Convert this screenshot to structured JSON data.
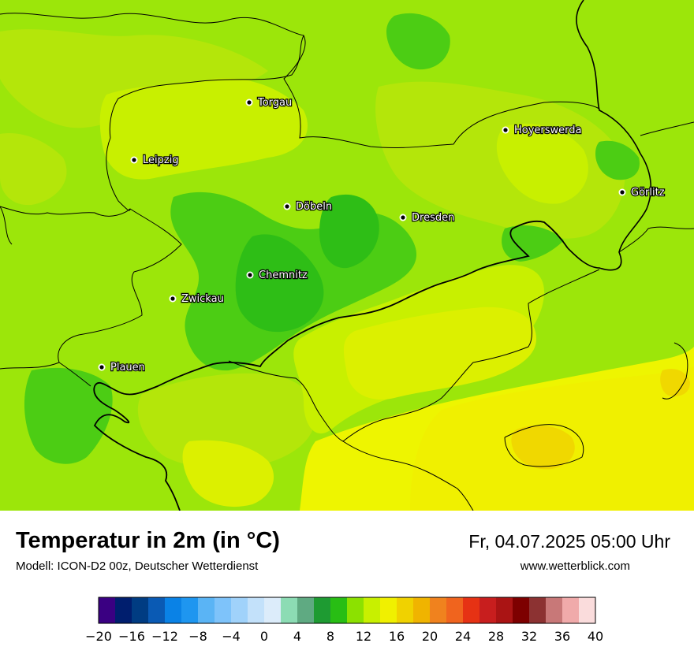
{
  "title": "Temperatur in 2m (in °C)",
  "subtitle": "Modell: ICON-D2 00z, Deutscher Wetterdienst",
  "datetime": "Fr, 04.07.2025 05:00 Uhr",
  "website": "www.wetterblick.com",
  "map_colors": {
    "temp_11": "#9ce60a",
    "temp_12": "#b4e60a",
    "temp_13": "#c8f000",
    "temp_14": "#dcf000",
    "temp_15": "#eef500",
    "temp_16": "#f0f000",
    "temp_10": "#4ccd14",
    "temp_9": "#2ebe16",
    "temp_17": "#f0d800"
  },
  "cities": [
    {
      "name": "Torgau"
    },
    {
      "name": "Leipzig"
    },
    {
      "name": "Hoyerswerda"
    },
    {
      "name": "Görlitz"
    },
    {
      "name": "Döbeln"
    },
    {
      "name": "Dresden"
    },
    {
      "name": "Chemnitz"
    },
    {
      "name": "Zwickau"
    },
    {
      "name": "Plauen"
    }
  ],
  "legend": {
    "colors": [
      "#3a0082",
      "#001e6e",
      "#003c82",
      "#0a5ab4",
      "#0a82e6",
      "#1e96f0",
      "#5ab4f5",
      "#7ec3fa",
      "#a0d2fa",
      "#c3e1fa",
      "#dcecfa",
      "#8cdcb4",
      "#5faa82",
      "#1e9b32",
      "#28be14",
      "#8ce100",
      "#c8f000",
      "#f0f000",
      "#f0d200",
      "#f0b400",
      "#f0821e",
      "#f0641e",
      "#e63214",
      "#c81e1e",
      "#aa1414",
      "#7d0000",
      "#8c3232",
      "#c87878",
      "#f0aaaa",
      "#fadcdc"
    ],
    "ticks": [
      "−20",
      "−16",
      "−12",
      "−8",
      "−4",
      "0",
      "4",
      "8",
      "12",
      "16",
      "20",
      "24",
      "28",
      "32",
      "36",
      "40"
    ]
  }
}
